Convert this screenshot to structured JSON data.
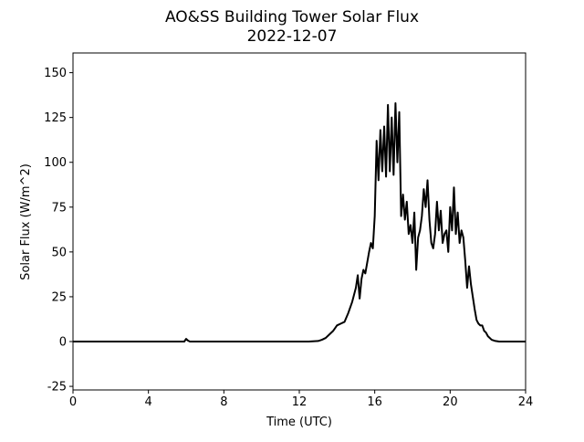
{
  "chart_data": {
    "type": "line",
    "title": "AO&SS Building Tower Solar Flux",
    "subtitle": "2022-12-07",
    "x_label": "Time (UTC)",
    "y_label": "Solar Flux (W/m^2)",
    "xlim": [
      0,
      24
    ],
    "xticks": [
      0,
      4,
      8,
      12,
      16,
      20,
      24
    ],
    "ylim": [
      -27,
      161
    ],
    "yticks": [
      -25,
      0,
      25,
      50,
      75,
      100,
      125,
      150
    ],
    "series": [
      {
        "color": "#000000",
        "x": [
          0,
          5.9,
          6.0,
          6.1,
          6.2,
          12.5,
          13.0,
          13.2,
          13.4,
          13.6,
          13.8,
          14.0,
          14.2,
          14.4,
          14.6,
          14.8,
          15.0,
          15.1,
          15.2,
          15.3,
          15.4,
          15.5,
          15.6,
          15.7,
          15.8,
          15.9,
          16.0,
          16.1,
          16.2,
          16.3,
          16.4,
          16.5,
          16.6,
          16.7,
          16.8,
          16.9,
          17.0,
          17.1,
          17.2,
          17.3,
          17.4,
          17.5,
          17.6,
          17.7,
          17.8,
          17.9,
          18.0,
          18.1,
          18.2,
          18.3,
          18.4,
          18.5,
          18.6,
          18.7,
          18.8,
          18.9,
          19.0,
          19.1,
          19.2,
          19.3,
          19.4,
          19.5,
          19.6,
          19.7,
          19.8,
          19.9,
          20.0,
          20.1,
          20.2,
          20.3,
          20.4,
          20.5,
          20.6,
          20.7,
          20.8,
          20.9,
          21.0,
          21.1,
          21.2,
          21.3,
          21.4,
          21.5,
          21.6,
          21.7,
          21.8,
          21.9,
          22.0,
          22.2,
          22.4,
          22.6,
          24
        ],
        "values": [
          0,
          0,
          1.5,
          0.5,
          0,
          0,
          0.3,
          1,
          2,
          4,
          6,
          9,
          10,
          11,
          16,
          22,
          30,
          37,
          24,
          35,
          40,
          38,
          44,
          50,
          55,
          52,
          70,
          112,
          90,
          118,
          95,
          120,
          92,
          132,
          95,
          125,
          93,
          133,
          100,
          128,
          70,
          82,
          68,
          78,
          60,
          65,
          55,
          72,
          40,
          58,
          62,
          70,
          85,
          75,
          90,
          68,
          55,
          52,
          60,
          78,
          62,
          73,
          55,
          60,
          62,
          50,
          75,
          62,
          86,
          60,
          72,
          55,
          62,
          58,
          45,
          30,
          42,
          32,
          25,
          18,
          12,
          10,
          9,
          9,
          6,
          5,
          3,
          1,
          0.3,
          0,
          0
        ]
      }
    ]
  }
}
